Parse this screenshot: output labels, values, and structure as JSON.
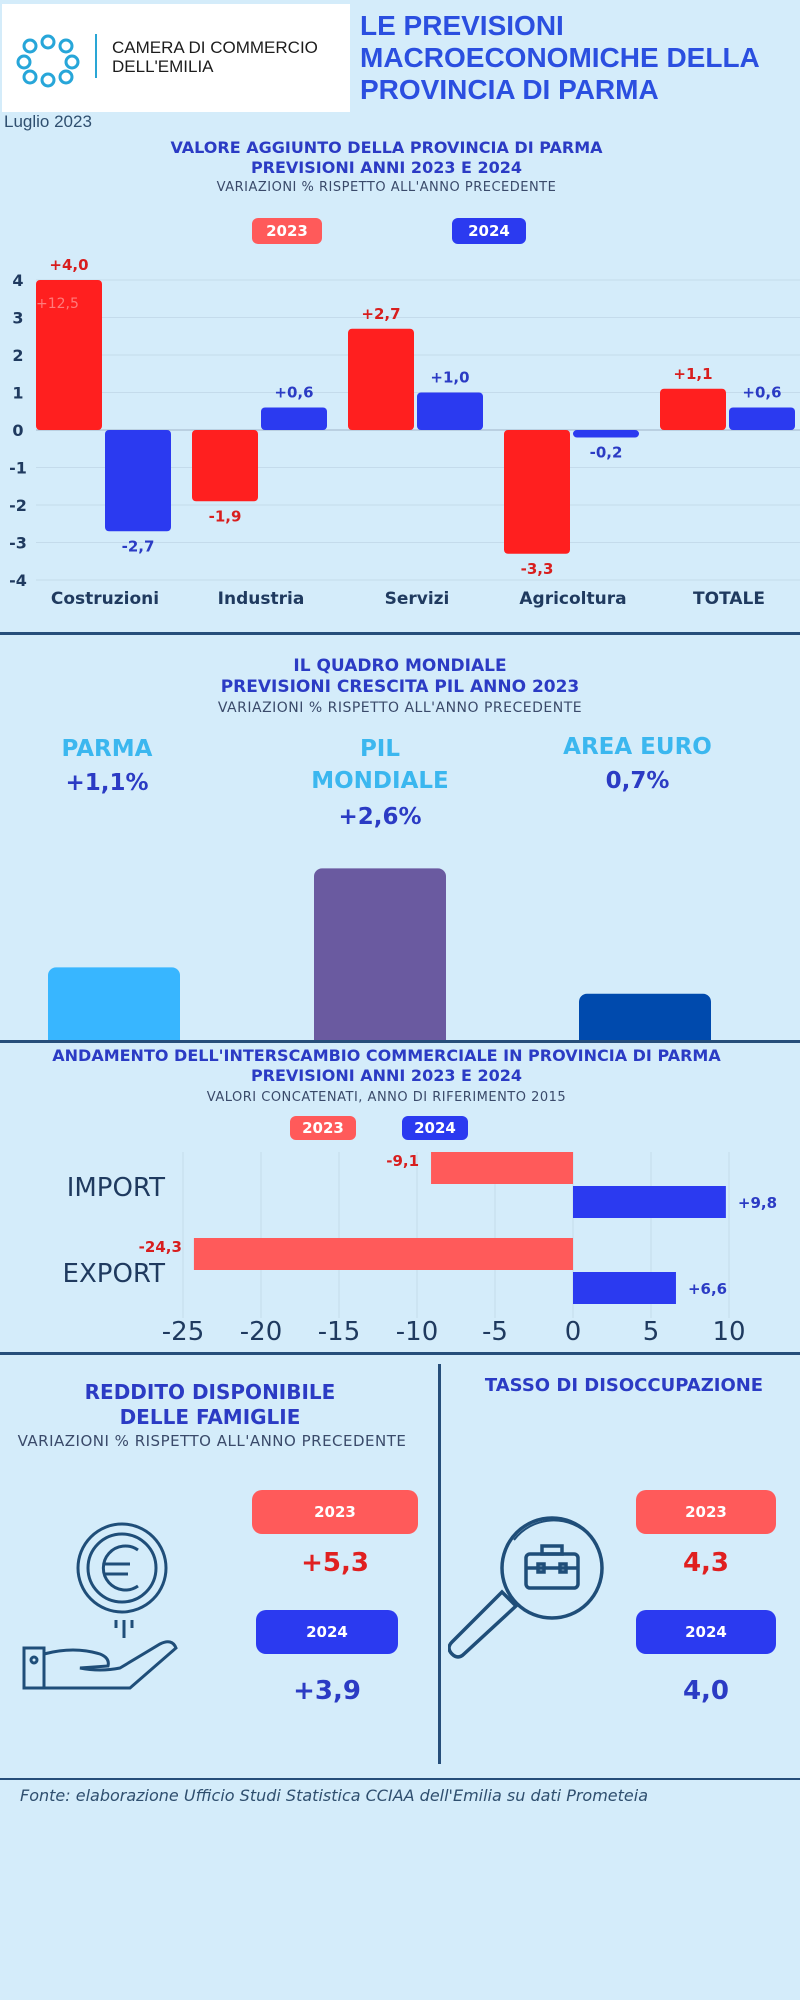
{
  "header": {
    "org_line1": "CAMERA DI COMMERCIO",
    "org_line2": "DELL'EMILIA",
    "title_line1": "LE PREVISIONI",
    "title_line2": "MACROECONOMICHE DELLA",
    "title_line3": "PROVINCIA DI PARMA",
    "date": "Luglio 2023"
  },
  "colors": {
    "red": "#ff1f1f",
    "blue": "#2b3af0",
    "coral": "#ff5a5a",
    "light_blue": "#38b6ff",
    "purple": "#6a5aa0",
    "navy": "#004aad"
  },
  "section1": {
    "title_line1": "VALORE AGGIUNTO DELLA PROVINCIA DI PARMA",
    "title_line2": "PREVISIONI ANNI  2023 E 2024",
    "subtitle": "VARIAZIONI % RISPETTO ALL'ANNO PRECEDENTE",
    "legend_2023": "2023",
    "legend_2024": "2024",
    "faded_label": "+12,5"
  },
  "section2": {
    "title_line1": "IL QUADRO MONDIALE",
    "title_line2": "PREVISIONI CRESCITA PIL ANNO 2023",
    "subtitle": "VARIAZIONI % RISPETTO ALL'ANNO PRECEDENTE",
    "parma_label": "PARMA",
    "parma_value": "+1,1%",
    "pil_label_line1": "PIL",
    "pil_label_line2": "MONDIALE",
    "pil_value": "+2,6%",
    "euro_label": "AREA EURO",
    "euro_value": "0,7%"
  },
  "section3": {
    "title_line1": "ANDAMENTO DELL'INTERSCAMBIO COMMERCIALE IN PROVINCIA DI PARMA",
    "title_line2": "PREVISIONI ANNI 2023 E 2024",
    "subtitle": "VALORI CONCATENATI, ANNO DI RIFERIMENTO 2015",
    "legend_2023": "2023",
    "legend_2024": "2024"
  },
  "section4": {
    "title_line1": "REDDITO DISPONIBILE",
    "title_line2": "DELLE FAMIGLIE",
    "subtitle": "VARIAZIONI % RISPETTO ALL'ANNO PRECEDENTE",
    "year_2023": "2023",
    "value_2023": "+5,3",
    "year_2024": "2024",
    "value_2024": "+3,9",
    "icon": "euro-coin-hand-icon"
  },
  "section5": {
    "title": "TASSO DI DISOCCUPAZIONE",
    "year_2023": "2023",
    "value_2023": "4,3",
    "year_2024": "2024",
    "value_2024": "4,0",
    "icon": "magnifier-briefcase-icon"
  },
  "footer": "Fonte: elaborazione Ufficio Studi Statistica CCIAA dell'Emilia su dati Prometeia",
  "chart_data": [
    {
      "type": "bar",
      "categories": [
        "Costruzioni",
        "Industria",
        "Servizi",
        "Agricoltura",
        "TOTALE"
      ],
      "series": [
        {
          "name": "2023",
          "values": [
            4.0,
            -1.9,
            2.7,
            -3.3,
            1.1
          ],
          "labels": [
            "+4,0",
            "-1,9",
            "+2,7",
            "-3,3",
            "+1,1"
          ]
        },
        {
          "name": "2024",
          "values": [
            -2.7,
            0.6,
            1.0,
            -0.2,
            0.6
          ],
          "labels": [
            "-2,7",
            "+0,6",
            "+1,0",
            "-0,2",
            "+0,6"
          ]
        }
      ],
      "ylim": [
        -4,
        4
      ],
      "yticks": [
        "4",
        "3",
        "2",
        "1",
        "0",
        "-1",
        "-2",
        "-3",
        "-4"
      ],
      "title": "VALORE AGGIUNTO DELLA PROVINCIA DI PARMA PREVISIONI ANNI  2023 E 2024"
    },
    {
      "type": "bar",
      "categories": [
        "PARMA",
        "PIL MONDIALE",
        "AREA EURO"
      ],
      "values": [
        1.1,
        2.6,
        0.7
      ],
      "labels": [
        "+1,1%",
        "+2,6%",
        "0,7%"
      ],
      "title": "IL QUADRO MONDIALE PREVISIONI CRESCITA PIL ANNO 2023"
    },
    {
      "type": "bar",
      "orientation": "horizontal",
      "categories": [
        "IMPORT",
        "EXPORT"
      ],
      "series": [
        {
          "name": "2023",
          "values": [
            -9.1,
            -24.3
          ],
          "labels": [
            "-9,1",
            "-24,3"
          ]
        },
        {
          "name": "2024",
          "values": [
            9.8,
            6.6
          ],
          "labels": [
            "+9,8",
            "+6,6"
          ]
        }
      ],
      "xlim": [
        -25,
        10
      ],
      "xticks": [
        "-25",
        "-20",
        "-15",
        "-10",
        "-5",
        "0",
        "5",
        "10"
      ],
      "title": "ANDAMENTO DELL'INTERSCAMBIO COMMERCIALE IN PROVINCIA DI PARMA"
    }
  ]
}
